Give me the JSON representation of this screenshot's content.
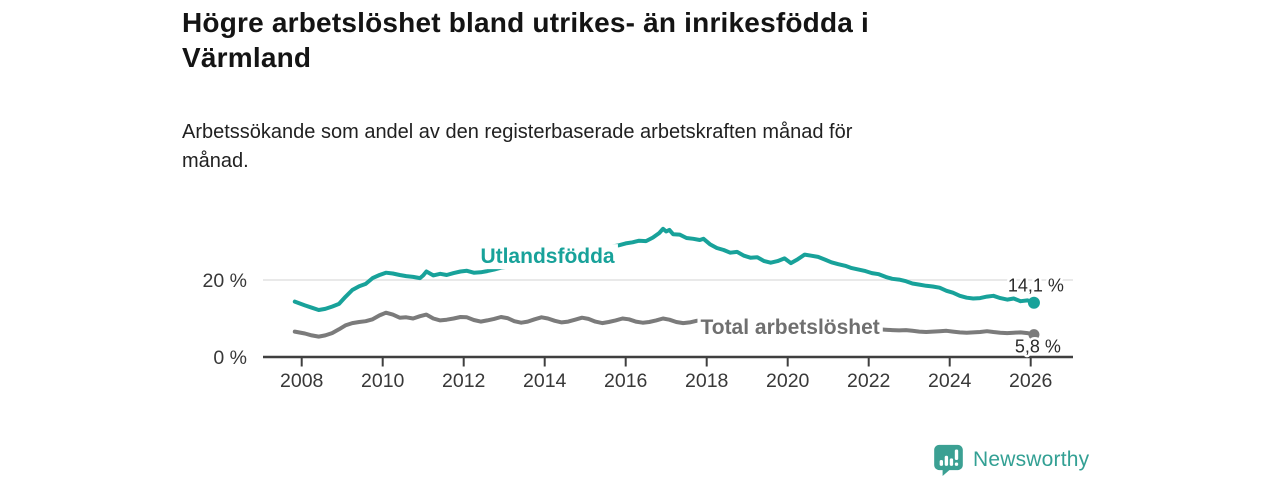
{
  "page": {
    "background_color": "#ffffff"
  },
  "header": {
    "title": "Högre arbetslöshet bland utrikes- än inrikesfödda i\nVärmland",
    "subtitle": "Arbetssökande som andel av den registerbaserade arbetskraften månad för\nmånad."
  },
  "footer": {
    "brand_name": "Newsworthy",
    "brand_color": "#33a094",
    "logo_icon": "newsworthy-speech-bubble-bar-chart-icon"
  },
  "chart_data": {
    "type": "line",
    "unit": "%",
    "title": "",
    "xlabel": "",
    "ylabel": "",
    "x_axis": {
      "ticks": [
        "2008",
        "2010",
        "2012",
        "2014",
        "2016",
        "2018",
        "2020",
        "2022",
        "2024",
        "2026"
      ]
    },
    "y_axis": {
      "ticks": [
        {
          "value": 0,
          "label": "0 %"
        },
        {
          "value": 20,
          "label": "20 %"
        }
      ],
      "gridline_values": [
        20
      ],
      "range": [
        0,
        35
      ]
    },
    "x_range": [
      2007.8,
      2027.1
    ],
    "colors": {
      "grid": "#dcdcdc",
      "axis": "#3f3f3f",
      "tick_text": "#383838",
      "end_label_text": "#2b2b2b"
    },
    "series": [
      {
        "name": "Utlandsfödda",
        "color": "#18a29a",
        "label_color": "#18a29a",
        "end_label": "14,1 %",
        "end_value": 14.1,
        "label_pos": [
          2014.07,
          26.2
        ],
        "points": [
          [
            2007.83,
            14.4
          ],
          [
            2008.08,
            13.4
          ],
          [
            2008.25,
            12.8
          ],
          [
            2008.42,
            12.2
          ],
          [
            2008.58,
            12.5
          ],
          [
            2008.75,
            13.1
          ],
          [
            2008.92,
            13.8
          ],
          [
            2009.08,
            15.6
          ],
          [
            2009.25,
            17.4
          ],
          [
            2009.42,
            18.4
          ],
          [
            2009.58,
            19.0
          ],
          [
            2009.75,
            20.5
          ],
          [
            2009.92,
            21.3
          ],
          [
            2010.08,
            21.9
          ],
          [
            2010.25,
            21.7
          ],
          [
            2010.42,
            21.3
          ],
          [
            2010.58,
            21.0
          ],
          [
            2010.75,
            20.8
          ],
          [
            2010.92,
            20.5
          ],
          [
            2011.0,
            21.2
          ],
          [
            2011.08,
            22.2
          ],
          [
            2011.25,
            21.2
          ],
          [
            2011.42,
            21.6
          ],
          [
            2011.58,
            21.3
          ],
          [
            2011.75,
            21.8
          ],
          [
            2011.92,
            22.2
          ],
          [
            2012.08,
            22.4
          ],
          [
            2012.25,
            21.9
          ],
          [
            2012.42,
            22.0
          ],
          [
            2012.58,
            22.3
          ],
          [
            2012.75,
            22.7
          ],
          [
            2012.92,
            23.2
          ],
          [
            2013.17,
            23.6
          ],
          [
            2013.42,
            23.9
          ],
          [
            2013.67,
            24.3
          ],
          [
            2013.92,
            24.8
          ],
          [
            2014.17,
            25.2
          ],
          [
            2014.42,
            25.7
          ],
          [
            2014.67,
            26.3
          ],
          [
            2014.92,
            27.1
          ],
          [
            2015.17,
            27.8
          ],
          [
            2015.42,
            28.3
          ],
          [
            2015.67,
            28.7
          ],
          [
            2015.83,
            29.0
          ],
          [
            2016.0,
            29.5
          ],
          [
            2016.17,
            29.8
          ],
          [
            2016.33,
            30.2
          ],
          [
            2016.5,
            30.1
          ],
          [
            2016.67,
            31.0
          ],
          [
            2016.83,
            32.2
          ],
          [
            2016.92,
            33.3
          ],
          [
            2017.0,
            32.6
          ],
          [
            2017.08,
            33.0
          ],
          [
            2017.17,
            31.9
          ],
          [
            2017.33,
            31.8
          ],
          [
            2017.5,
            30.9
          ],
          [
            2017.67,
            30.7
          ],
          [
            2017.83,
            30.4
          ],
          [
            2017.92,
            30.7
          ],
          [
            2018.08,
            29.3
          ],
          [
            2018.25,
            28.3
          ],
          [
            2018.42,
            27.8
          ],
          [
            2018.58,
            27.1
          ],
          [
            2018.75,
            27.3
          ],
          [
            2018.92,
            26.3
          ],
          [
            2019.08,
            25.8
          ],
          [
            2019.25,
            25.9
          ],
          [
            2019.42,
            24.9
          ],
          [
            2019.58,
            24.5
          ],
          [
            2019.75,
            24.9
          ],
          [
            2019.92,
            25.6
          ],
          [
            2020.08,
            24.4
          ],
          [
            2020.25,
            25.4
          ],
          [
            2020.42,
            26.6
          ],
          [
            2020.58,
            26.3
          ],
          [
            2020.75,
            26.0
          ],
          [
            2020.92,
            25.3
          ],
          [
            2021.08,
            24.6
          ],
          [
            2021.25,
            24.1
          ],
          [
            2021.42,
            23.7
          ],
          [
            2021.58,
            23.1
          ],
          [
            2021.75,
            22.7
          ],
          [
            2021.92,
            22.3
          ],
          [
            2022.08,
            21.8
          ],
          [
            2022.25,
            21.5
          ],
          [
            2022.42,
            20.8
          ],
          [
            2022.58,
            20.3
          ],
          [
            2022.75,
            20.1
          ],
          [
            2022.92,
            19.7
          ],
          [
            2023.08,
            19.1
          ],
          [
            2023.25,
            18.8
          ],
          [
            2023.42,
            18.5
          ],
          [
            2023.58,
            18.3
          ],
          [
            2023.75,
            18.0
          ],
          [
            2023.92,
            17.2
          ],
          [
            2024.08,
            16.7
          ],
          [
            2024.25,
            15.9
          ],
          [
            2024.42,
            15.4
          ],
          [
            2024.58,
            15.2
          ],
          [
            2024.75,
            15.3
          ],
          [
            2024.92,
            15.7
          ],
          [
            2025.08,
            15.9
          ],
          [
            2025.25,
            15.3
          ],
          [
            2025.42,
            14.9
          ],
          [
            2025.58,
            15.2
          ],
          [
            2025.75,
            14.5
          ],
          [
            2025.92,
            14.7
          ],
          [
            2026.08,
            14.1
          ]
        ]
      },
      {
        "name": "Total arbetslöshet",
        "color": "#7b7b7b",
        "label_color": "#6f6f6f",
        "end_label": "5,8 %",
        "end_value": 5.8,
        "label_pos": [
          2020.06,
          7.8
        ],
        "points": [
          [
            2007.83,
            6.6
          ],
          [
            2008.08,
            6.1
          ],
          [
            2008.25,
            5.6
          ],
          [
            2008.42,
            5.3
          ],
          [
            2008.58,
            5.6
          ],
          [
            2008.75,
            6.2
          ],
          [
            2008.92,
            7.2
          ],
          [
            2009.08,
            8.2
          ],
          [
            2009.25,
            8.8
          ],
          [
            2009.42,
            9.1
          ],
          [
            2009.58,
            9.3
          ],
          [
            2009.75,
            9.8
          ],
          [
            2009.92,
            10.8
          ],
          [
            2010.08,
            11.5
          ],
          [
            2010.25,
            11.0
          ],
          [
            2010.42,
            10.2
          ],
          [
            2010.58,
            10.3
          ],
          [
            2010.75,
            10.0
          ],
          [
            2010.92,
            10.6
          ],
          [
            2011.08,
            11.0
          ],
          [
            2011.25,
            10.0
          ],
          [
            2011.42,
            9.5
          ],
          [
            2011.58,
            9.7
          ],
          [
            2011.75,
            10.0
          ],
          [
            2011.92,
            10.4
          ],
          [
            2012.08,
            10.3
          ],
          [
            2012.25,
            9.6
          ],
          [
            2012.42,
            9.2
          ],
          [
            2012.58,
            9.5
          ],
          [
            2012.75,
            9.9
          ],
          [
            2012.92,
            10.4
          ],
          [
            2013.08,
            10.1
          ],
          [
            2013.25,
            9.3
          ],
          [
            2013.42,
            8.9
          ],
          [
            2013.58,
            9.2
          ],
          [
            2013.75,
            9.8
          ],
          [
            2013.92,
            10.3
          ],
          [
            2014.08,
            10.0
          ],
          [
            2014.25,
            9.4
          ],
          [
            2014.42,
            9.0
          ],
          [
            2014.58,
            9.2
          ],
          [
            2014.75,
            9.7
          ],
          [
            2014.92,
            10.2
          ],
          [
            2015.08,
            9.9
          ],
          [
            2015.25,
            9.2
          ],
          [
            2015.42,
            8.8
          ],
          [
            2015.58,
            9.1
          ],
          [
            2015.75,
            9.5
          ],
          [
            2015.92,
            10.0
          ],
          [
            2016.08,
            9.8
          ],
          [
            2016.25,
            9.2
          ],
          [
            2016.42,
            8.9
          ],
          [
            2016.58,
            9.1
          ],
          [
            2016.75,
            9.5
          ],
          [
            2016.92,
            10.0
          ],
          [
            2017.08,
            9.7
          ],
          [
            2017.25,
            9.1
          ],
          [
            2017.42,
            8.8
          ],
          [
            2017.58,
            9.0
          ],
          [
            2017.75,
            9.4
          ],
          [
            2017.92,
            9.7
          ],
          [
            2018.08,
            9.4
          ],
          [
            2018.25,
            8.8
          ],
          [
            2018.42,
            8.5
          ],
          [
            2018.58,
            8.7
          ],
          [
            2018.75,
            9.0
          ],
          [
            2018.92,
            9.3
          ],
          [
            2019.08,
            9.0
          ],
          [
            2019.25,
            8.6
          ],
          [
            2019.42,
            8.4
          ],
          [
            2019.58,
            8.6
          ],
          [
            2019.75,
            8.9
          ],
          [
            2019.92,
            9.1
          ],
          [
            2020.08,
            9.0
          ],
          [
            2020.25,
            9.3
          ],
          [
            2020.42,
            9.6
          ],
          [
            2020.58,
            9.4
          ],
          [
            2020.75,
            9.1
          ],
          [
            2020.92,
            8.9
          ],
          [
            2021.08,
            8.6
          ],
          [
            2021.25,
            8.3
          ],
          [
            2021.42,
            8.1
          ],
          [
            2021.58,
            7.9
          ],
          [
            2021.75,
            7.8
          ],
          [
            2021.92,
            7.8
          ],
          [
            2022.08,
            7.5
          ],
          [
            2022.25,
            7.2
          ],
          [
            2022.42,
            7.1
          ],
          [
            2022.58,
            7.0
          ],
          [
            2022.75,
            6.9
          ],
          [
            2022.92,
            7.0
          ],
          [
            2023.08,
            6.8
          ],
          [
            2023.25,
            6.6
          ],
          [
            2023.42,
            6.5
          ],
          [
            2023.58,
            6.6
          ],
          [
            2023.75,
            6.7
          ],
          [
            2023.92,
            6.8
          ],
          [
            2024.08,
            6.6
          ],
          [
            2024.25,
            6.4
          ],
          [
            2024.42,
            6.3
          ],
          [
            2024.58,
            6.4
          ],
          [
            2024.75,
            6.5
          ],
          [
            2024.92,
            6.7
          ],
          [
            2025.08,
            6.5
          ],
          [
            2025.25,
            6.3
          ],
          [
            2025.42,
            6.2
          ],
          [
            2025.58,
            6.3
          ],
          [
            2025.75,
            6.4
          ],
          [
            2025.92,
            6.2
          ],
          [
            2026.08,
            5.8
          ]
        ]
      }
    ]
  }
}
